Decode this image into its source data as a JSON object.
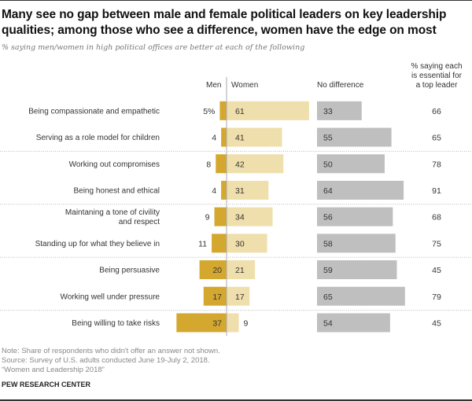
{
  "header": {
    "title": "Many see no gap between male and female political leaders on key leadership qualities; among those who see a difference, women have the edge on most",
    "subtitle": "% saying men/women in high political offices are better at each of the following"
  },
  "columns": {
    "men": "Men",
    "women": "Women",
    "no_difference": "No difference",
    "essential_line1": "% saying each",
    "essential_line2": "is essential for",
    "essential_line3": "a top leader"
  },
  "colors": {
    "men": "#d4a82f",
    "women": "#efdfac",
    "no_difference": "#bfbfc0",
    "axis": "#aaaaaa",
    "separator": "#bbbbbb"
  },
  "chart_data": {
    "type": "bar",
    "title": "Many see no gap between male and female political leaders on key leadership qualities; among those who see a difference, women have the edge on most",
    "subtitle": "% saying men/women in high political offices are better at each of the following",
    "categories": [
      [
        "Being compassionate and empathetic"
      ],
      [
        "Serving as a role model for children"
      ],
      [
        "Working out compromises"
      ],
      [
        "Being honest and ethical"
      ],
      [
        "Maintaning a tone of civility",
        "and respect"
      ],
      [
        "Standing up for what they believe in"
      ],
      [
        "Being persuasive"
      ],
      [
        "Working well under pressure"
      ],
      [
        "Being willing to take risks"
      ]
    ],
    "series": [
      {
        "name": "Men",
        "values": [
          5,
          4,
          8,
          4,
          9,
          11,
          20,
          17,
          37
        ]
      },
      {
        "name": "Women",
        "values": [
          61,
          41,
          42,
          31,
          34,
          30,
          21,
          17,
          9
        ]
      },
      {
        "name": "No difference",
        "values": [
          33,
          55,
          50,
          64,
          56,
          58,
          59,
          65,
          54
        ]
      },
      {
        "name": "% saying each is essential for a top leader",
        "values": [
          66,
          65,
          78,
          91,
          68,
          75,
          45,
          79,
          45
        ]
      }
    ],
    "first_value_suffix": "%",
    "group_separators_after": [
      1,
      3,
      5,
      7
    ],
    "xlim": [
      0,
      100
    ],
    "grid": false,
    "legend": "top (column headers)"
  },
  "footer": {
    "note": "Note: Share of respondents who didn't offer an answer not shown.",
    "source": "Source: Survey of U.S. adults conducted June 19-July 2, 2018.",
    "report": "“Women and Leadership 2018”",
    "org": "PEW RESEARCH CENTER"
  }
}
